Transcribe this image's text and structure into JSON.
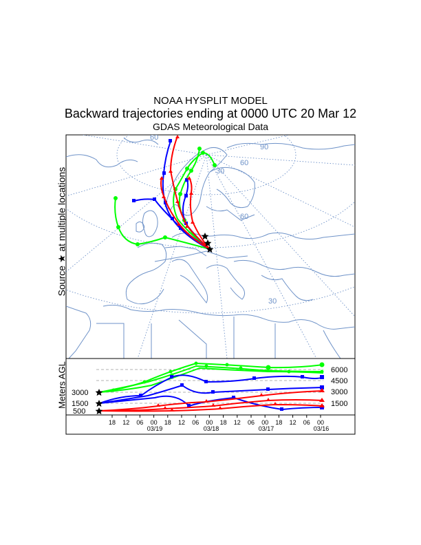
{
  "header": {
    "line1": "NOAA HYSPLIT MODEL",
    "line2": "Backward trajectories ending at 0000 UTC 20 Mar 12",
    "line3": "GDAS Meteorological Data"
  },
  "side_labels": {
    "source": "Source ★ at multiple locations",
    "meters": "Meters AGL"
  },
  "map": {
    "lat_labels": [
      "60",
      "30",
      "30",
      "60",
      "90",
      "60"
    ],
    "star_icon": "star-icon"
  },
  "height_panel": {
    "left_levels": [
      "3000",
      "1500",
      "500"
    ],
    "right_levels": [
      "6000",
      "4500",
      "3000",
      "1500"
    ],
    "time_ticks": [
      "18",
      "12",
      "06",
      "00",
      "18",
      "12",
      "06",
      "00",
      "18",
      "12",
      "06",
      "00",
      "18",
      "12",
      "06",
      "00"
    ],
    "date_labels": [
      "03/19",
      "03/18",
      "03/17",
      "03/16"
    ]
  },
  "colors": {
    "red": "#ff0000",
    "blue": "#0000ff",
    "green": "#00ff00",
    "coast": "#6e92c8",
    "grid": "#5a82c0"
  }
}
